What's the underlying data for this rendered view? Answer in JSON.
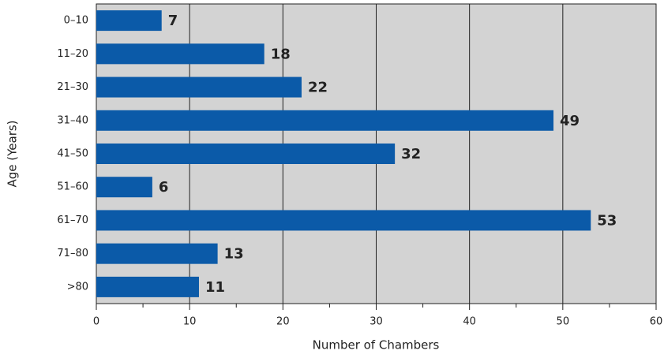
{
  "chart_data": {
    "type": "bar",
    "orientation": "horizontal",
    "xlabel": "Number of Chambers",
    "ylabel": "Age (Years)",
    "categories": [
      "0–10",
      "11–20",
      "21–30",
      "31–40",
      "41–50",
      "51–60",
      "61–70",
      "71–80",
      ">80"
    ],
    "values": [
      7,
      18,
      22,
      49,
      32,
      6,
      53,
      13,
      11
    ],
    "color": "#0b5aa8",
    "xlim": [
      0,
      60
    ],
    "xticks": [
      0,
      10,
      20,
      30,
      40,
      50,
      60
    ],
    "minor_xticks": [
      5,
      15,
      25,
      35,
      45,
      55
    ],
    "grid": true
  }
}
